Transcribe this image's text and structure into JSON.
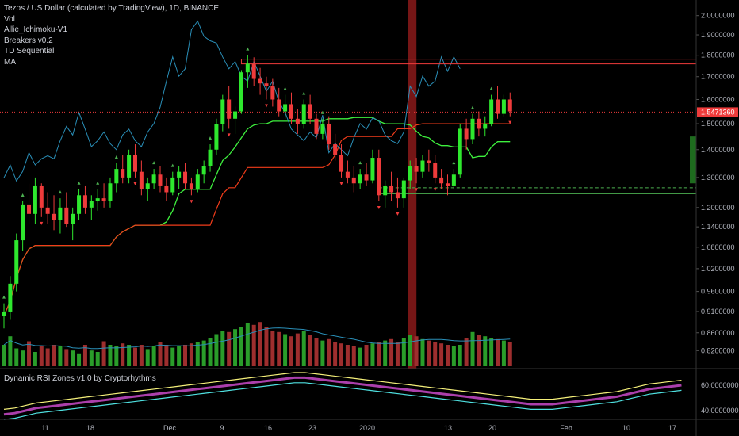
{
  "legend": {
    "title": "Tezos / US Dollar (calculated by TradingView), 1D, BINANCE",
    "indicators": [
      "Vol",
      "Allie_Ichimoku-V1",
      "Breakers v0.2",
      "TD Sequential",
      "MA"
    ]
  },
  "oscillator": {
    "title": "Dynamic RSI Zones v1.0 by Cryptorhythms",
    "tick_labels": [
      "60.0000000",
      "40.0000000"
    ]
  },
  "price_tag": "1.5471360",
  "colors": {
    "up": "#26a69a",
    "bull": "#2ee82e",
    "bear": "#ef3b3b",
    "cloud_line": "#4caf50",
    "blue_line": "#2a8fb8",
    "red_line": "#f23c1a",
    "green_line": "#3ef03e",
    "vol_up": "#2a9d2a",
    "vol_dn": "#9e2e2e",
    "highlight": "#8b1a1a"
  },
  "chart_data": {
    "type": "candlestick",
    "title": "Tezos / US Dollar (calculated by TradingView), 1D, BINANCE",
    "x_tick_labels": [
      "11",
      "18",
      "Dec",
      "9",
      "16",
      "23",
      "2020",
      "13",
      "20",
      "Feb",
      "10",
      "17"
    ],
    "y_tick_labels": [
      "2.0000000",
      "1.9000000",
      "1.8000000",
      "1.7000000",
      "1.6000000",
      "1.5000000",
      "1.4000000",
      "1.3000000",
      "1.2000000",
      "1.1400000",
      "1.0800000",
      "1.0200000",
      "0.9600000",
      "0.9100000",
      "0.8600000",
      "0.8200000"
    ],
    "y_scale": "log",
    "ylim": [
      0.79,
      2.05
    ],
    "last_price": 1.547136,
    "candles": [
      [
        0.9,
        0.93,
        0.87,
        0.91
      ],
      [
        0.91,
        1.0,
        0.89,
        0.98
      ],
      [
        0.98,
        1.12,
        0.96,
        1.1
      ],
      [
        1.1,
        1.22,
        1.07,
        1.21
      ],
      [
        1.21,
        1.28,
        1.15,
        1.18
      ],
      [
        1.18,
        1.3,
        1.15,
        1.27
      ],
      [
        1.27,
        1.28,
        1.17,
        1.2
      ],
      [
        1.2,
        1.25,
        1.15,
        1.18
      ],
      [
        1.18,
        1.24,
        1.13,
        1.16
      ],
      [
        1.16,
        1.23,
        1.12,
        1.2
      ],
      [
        1.2,
        1.25,
        1.14,
        1.15
      ],
      [
        1.15,
        1.2,
        1.1,
        1.18
      ],
      [
        1.18,
        1.26,
        1.16,
        1.24
      ],
      [
        1.24,
        1.27,
        1.18,
        1.2
      ],
      [
        1.2,
        1.24,
        1.16,
        1.22
      ],
      [
        1.22,
        1.26,
        1.19,
        1.23
      ],
      [
        1.23,
        1.28,
        1.2,
        1.22
      ],
      [
        1.22,
        1.3,
        1.2,
        1.28
      ],
      [
        1.28,
        1.35,
        1.25,
        1.33
      ],
      [
        1.33,
        1.38,
        1.28,
        1.3
      ],
      [
        1.3,
        1.4,
        1.28,
        1.38
      ],
      [
        1.38,
        1.42,
        1.3,
        1.32
      ],
      [
        1.32,
        1.36,
        1.24,
        1.26
      ],
      [
        1.26,
        1.3,
        1.22,
        1.28
      ],
      [
        1.28,
        1.33,
        1.26,
        1.31
      ],
      [
        1.31,
        1.34,
        1.25,
        1.27
      ],
      [
        1.27,
        1.3,
        1.22,
        1.25
      ],
      [
        1.25,
        1.32,
        1.24,
        1.3
      ],
      [
        1.3,
        1.34,
        1.26,
        1.32
      ],
      [
        1.32,
        1.35,
        1.26,
        1.28
      ],
      [
        1.28,
        1.3,
        1.24,
        1.26
      ],
      [
        1.26,
        1.33,
        1.25,
        1.31
      ],
      [
        1.31,
        1.36,
        1.28,
        1.34
      ],
      [
        1.34,
        1.42,
        1.32,
        1.4
      ],
      [
        1.4,
        1.52,
        1.38,
        1.5
      ],
      [
        1.5,
        1.62,
        1.47,
        1.6
      ],
      [
        1.6,
        1.66,
        1.48,
        1.52
      ],
      [
        1.52,
        1.57,
        1.46,
        1.55
      ],
      [
        1.55,
        1.73,
        1.54,
        1.72
      ],
      [
        1.72,
        1.8,
        1.65,
        1.76
      ],
      [
        1.76,
        1.79,
        1.66,
        1.69
      ],
      [
        1.69,
        1.74,
        1.62,
        1.67
      ],
      [
        1.67,
        1.7,
        1.6,
        1.66
      ],
      [
        1.66,
        1.69,
        1.57,
        1.6
      ],
      [
        1.6,
        1.65,
        1.53,
        1.55
      ],
      [
        1.55,
        1.62,
        1.52,
        1.58
      ],
      [
        1.58,
        1.63,
        1.5,
        1.52
      ],
      [
        1.52,
        1.56,
        1.46,
        1.5
      ],
      [
        1.5,
        1.6,
        1.48,
        1.58
      ],
      [
        1.58,
        1.62,
        1.5,
        1.52
      ],
      [
        1.52,
        1.54,
        1.44,
        1.46
      ],
      [
        1.46,
        1.52,
        1.44,
        1.5
      ],
      [
        1.5,
        1.53,
        1.4,
        1.42
      ],
      [
        1.42,
        1.46,
        1.36,
        1.38
      ],
      [
        1.38,
        1.42,
        1.3,
        1.32
      ],
      [
        1.32,
        1.36,
        1.28,
        1.3
      ],
      [
        1.3,
        1.34,
        1.25,
        1.28
      ],
      [
        1.28,
        1.33,
        1.26,
        1.31
      ],
      [
        1.31,
        1.35,
        1.27,
        1.29
      ],
      [
        1.29,
        1.4,
        1.28,
        1.37
      ],
      [
        1.37,
        1.4,
        1.22,
        1.24
      ],
      [
        1.24,
        1.29,
        1.2,
        1.27
      ],
      [
        1.27,
        1.32,
        1.22,
        1.25
      ],
      [
        1.25,
        1.3,
        1.2,
        1.23
      ],
      [
        1.23,
        1.3,
        1.2,
        1.29
      ],
      [
        1.29,
        1.36,
        1.26,
        1.34
      ],
      [
        1.34,
        1.37,
        1.28,
        1.32
      ],
      [
        1.32,
        1.38,
        1.3,
        1.36
      ],
      [
        1.36,
        1.4,
        1.32,
        1.35
      ],
      [
        1.35,
        1.38,
        1.28,
        1.3
      ],
      [
        1.3,
        1.33,
        1.26,
        1.28
      ],
      [
        1.28,
        1.31,
        1.24,
        1.27
      ],
      [
        1.27,
        1.33,
        1.26,
        1.31
      ],
      [
        1.31,
        1.5,
        1.3,
        1.48
      ],
      [
        1.48,
        1.52,
        1.4,
        1.44
      ],
      [
        1.44,
        1.54,
        1.42,
        1.52
      ],
      [
        1.52,
        1.55,
        1.45,
        1.48
      ],
      [
        1.48,
        1.53,
        1.45,
        1.5
      ],
      [
        1.5,
        1.62,
        1.49,
        1.6
      ],
      [
        1.6,
        1.66,
        1.52,
        1.54
      ],
      [
        1.54,
        1.62,
        1.53,
        1.6
      ],
      [
        1.6,
        1.63,
        1.53,
        1.55
      ]
    ],
    "volume_scale_max": 100,
    "volume": [
      30,
      42,
      25,
      22,
      35,
      20,
      28,
      25,
      30,
      28,
      24,
      22,
      18,
      30,
      22,
      20,
      35,
      30,
      28,
      32,
      30,
      26,
      30,
      24,
      28,
      34,
      30,
      26,
      28,
      30,
      32,
      34,
      36,
      40,
      45,
      50,
      48,
      52,
      55,
      60,
      58,
      62,
      55,
      50,
      48,
      45,
      42,
      46,
      50,
      44,
      40,
      36,
      38,
      34,
      32,
      30,
      28,
      26,
      30,
      32,
      34,
      36,
      38,
      34,
      40,
      44,
      42,
      38,
      36,
      34,
      32,
      30,
      28,
      30,
      40,
      48,
      44,
      42,
      40,
      38,
      36,
      34
    ]
  }
}
